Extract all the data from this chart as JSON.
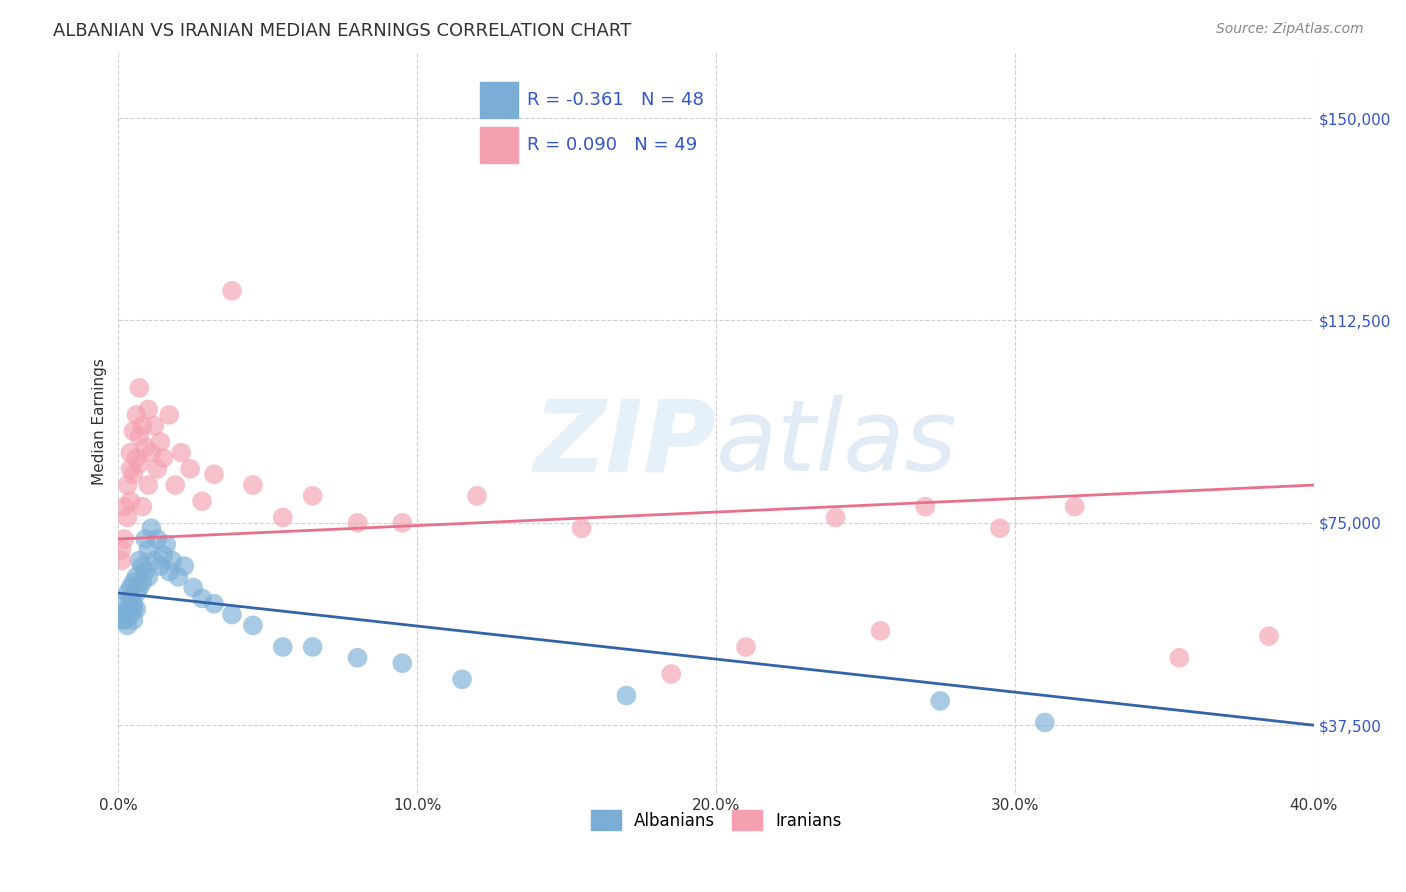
{
  "title": "ALBANIAN VS IRANIAN MEDIAN EARNINGS CORRELATION CHART",
  "source": "Source: ZipAtlas.com",
  "ylabel": "Median Earnings",
  "watermark": "ZIPatlas",
  "background_color": "#ffffff",
  "grid_color": "#cccccc",
  "xmin": 0.0,
  "xmax": 0.4,
  "ymin": 25000,
  "ymax": 162500,
  "yticks": [
    37500,
    75000,
    112500,
    150000
  ],
  "ytick_labels": [
    "$37,500",
    "$75,000",
    "$112,500",
    "$150,000"
  ],
  "xticks": [
    0.0,
    0.1,
    0.2,
    0.3,
    0.4
  ],
  "xtick_labels": [
    "0.0%",
    "10.0%",
    "20.0%",
    "30.0%",
    "40.0%"
  ],
  "albanian_color": "#7aaed6",
  "iranian_color": "#f4a0b0",
  "albanian_line_color": "#3464a8",
  "iranian_line_color": "#e8708a",
  "albanian_R": -0.361,
  "albanian_N": 48,
  "iranian_R": 0.09,
  "iranian_N": 49,
  "legend_label_color": "#3355cc",
  "ytick_color": "#3355cc",
  "albanian_x": [
    0.001,
    0.001,
    0.002,
    0.002,
    0.003,
    0.003,
    0.003,
    0.004,
    0.004,
    0.004,
    0.005,
    0.005,
    0.005,
    0.005,
    0.006,
    0.006,
    0.006,
    0.007,
    0.007,
    0.008,
    0.008,
    0.009,
    0.009,
    0.01,
    0.01,
    0.011,
    0.012,
    0.013,
    0.014,
    0.015,
    0.016,
    0.017,
    0.018,
    0.02,
    0.022,
    0.025,
    0.028,
    0.032,
    0.038,
    0.045,
    0.055,
    0.065,
    0.08,
    0.095,
    0.115,
    0.17,
    0.275,
    0.31
  ],
  "albanian_y": [
    58000,
    57000,
    60000,
    57000,
    62000,
    59000,
    56000,
    63000,
    61000,
    58000,
    64000,
    60000,
    59000,
    57000,
    65000,
    62000,
    59000,
    68000,
    63000,
    67000,
    64000,
    72000,
    66000,
    70000,
    65000,
    74000,
    68000,
    72000,
    67000,
    69000,
    71000,
    66000,
    68000,
    65000,
    67000,
    63000,
    61000,
    60000,
    58000,
    56000,
    52000,
    52000,
    50000,
    49000,
    46000,
    43000,
    42000,
    38000
  ],
  "iranian_x": [
    0.001,
    0.001,
    0.002,
    0.002,
    0.003,
    0.003,
    0.004,
    0.004,
    0.004,
    0.005,
    0.005,
    0.006,
    0.006,
    0.007,
    0.007,
    0.007,
    0.008,
    0.008,
    0.009,
    0.01,
    0.01,
    0.011,
    0.012,
    0.013,
    0.014,
    0.015,
    0.017,
    0.019,
    0.021,
    0.024,
    0.028,
    0.032,
    0.038,
    0.045,
    0.055,
    0.065,
    0.08,
    0.095,
    0.12,
    0.155,
    0.185,
    0.21,
    0.24,
    0.255,
    0.27,
    0.295,
    0.32,
    0.355,
    0.385
  ],
  "iranian_y": [
    70000,
    68000,
    78000,
    72000,
    82000,
    76000,
    88000,
    85000,
    79000,
    92000,
    84000,
    95000,
    87000,
    100000,
    91000,
    86000,
    93000,
    78000,
    89000,
    96000,
    82000,
    88000,
    93000,
    85000,
    90000,
    87000,
    95000,
    82000,
    88000,
    85000,
    79000,
    84000,
    118000,
    82000,
    76000,
    80000,
    75000,
    75000,
    80000,
    74000,
    47000,
    52000,
    76000,
    55000,
    78000,
    74000,
    78000,
    50000,
    54000
  ],
  "albanian_trendline_x": [
    0.0,
    0.4
  ],
  "albanian_trendline_y": [
    62000,
    37500
  ],
  "iranian_trendline_x": [
    0.0,
    0.4
  ],
  "iranian_trendline_y": [
    72000,
    82000
  ]
}
